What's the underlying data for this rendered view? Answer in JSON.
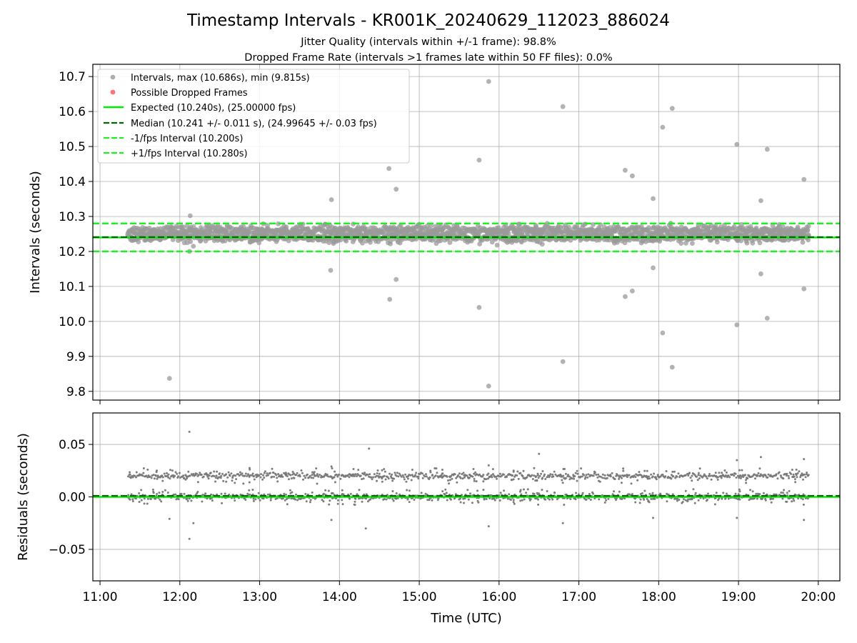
{
  "chart_data": [
    {
      "type": "scatter",
      "title": "Timestamp Intervals - KR001K_20240629_112023_886024",
      "subtitle_1": "Jitter Quality (intervals within +/-1 frame): 98.8%",
      "subtitle_2": "Dropped Frame Rate (intervals >1 frames late within 50 FF files): 0.0%",
      "xlabel": "",
      "ylabel": "Intervals (seconds)",
      "x_range_hours": [
        10.91,
        20.27
      ],
      "ylim": [
        9.775,
        10.735
      ],
      "yticks": [
        9.8,
        9.9,
        10.0,
        10.1,
        10.2,
        10.3,
        10.4,
        10.5,
        10.6,
        10.7
      ],
      "ytick_labels": [
        "9.8",
        "9.9",
        "10.0",
        "10.1",
        "10.2",
        "10.3",
        "10.4",
        "10.5",
        "10.6",
        "10.7"
      ],
      "grid": true,
      "legend_position": "top-left",
      "legend": [
        "Intervals, max (10.686s), min (9.815s)",
        "Possible Dropped Frames",
        "Expected (10.240s), (25.00000 fps)",
        "Median (10.241 +/- 0.011 s), (24.99645 +/- 0.03 fps)",
        "-1/fps Interval (10.200s)",
        "+1/fps Interval (10.280s)"
      ],
      "colors": {
        "points": "#999999",
        "dropped": "#ff6666",
        "expected": "#00ee00",
        "median": "#006400",
        "bounds": "#22ee22"
      },
      "reference_lines": {
        "expected": 10.24,
        "median": 10.241,
        "minus_one_fps": 10.2,
        "plus_one_fps": 10.28
      },
      "bands": [
        {
          "center": 10.26,
          "spread": 0.012
        },
        {
          "center": 10.24,
          "spread": 0.012
        }
      ],
      "data_x_range_hours": [
        11.35,
        19.88
      ],
      "outliers": [
        [
          11.87,
          9.837
        ],
        [
          12.13,
          10.302
        ],
        [
          12.12,
          10.2
        ],
        [
          12.17,
          10.215
        ],
        [
          13.9,
          10.348
        ],
        [
          13.89,
          10.146
        ],
        [
          14.62,
          10.437
        ],
        [
          14.71,
          10.378
        ],
        [
          14.71,
          10.12
        ],
        [
          14.63,
          10.063
        ],
        [
          15.75,
          10.461
        ],
        [
          15.75,
          10.04
        ],
        [
          15.87,
          10.686
        ],
        [
          15.87,
          9.815
        ],
        [
          16.8,
          10.614
        ],
        [
          16.8,
          9.885
        ],
        [
          17.58,
          10.432
        ],
        [
          17.67,
          10.416
        ],
        [
          17.58,
          10.071
        ],
        [
          17.67,
          10.087
        ],
        [
          17.93,
          10.351
        ],
        [
          17.93,
          10.153
        ],
        [
          18.05,
          10.555
        ],
        [
          18.05,
          9.967
        ],
        [
          18.17,
          10.609
        ],
        [
          18.17,
          9.869
        ],
        [
          18.98,
          10.506
        ],
        [
          18.98,
          9.99
        ],
        [
          19.28,
          10.345
        ],
        [
          19.28,
          10.136
        ],
        [
          19.36,
          10.492
        ],
        [
          19.36,
          10.009
        ],
        [
          19.82,
          10.406
        ],
        [
          19.82,
          10.093
        ]
      ]
    },
    {
      "type": "scatter",
      "xlabel": "Time (UTC)",
      "ylabel": "Residuals (seconds)",
      "x_range_hours": [
        10.91,
        20.27
      ],
      "ylim": [
        -0.08,
        0.08
      ],
      "yticks": [
        -0.05,
        0.0,
        0.05
      ],
      "ytick_labels": [
        "−0.05",
        "0.00",
        "0.05"
      ],
      "xticks_hours": [
        11,
        12,
        13,
        14,
        15,
        16,
        17,
        18,
        19,
        20
      ],
      "xtick_labels": [
        "11:00",
        "12:00",
        "13:00",
        "14:00",
        "15:00",
        "16:00",
        "17:00",
        "18:00",
        "19:00",
        "20:00"
      ],
      "grid": true,
      "colors": {
        "points": "#777777",
        "expected": "#00ee00",
        "median": "#006400"
      },
      "reference_lines": {
        "expected": 0.0,
        "median": 0.001
      },
      "bands": [
        {
          "center": 0.02,
          "spread": 0.003
        },
        {
          "center": 0.0,
          "spread": 0.003
        }
      ],
      "data_x_range_hours": [
        11.35,
        19.88
      ],
      "outliers": [
        [
          12.12,
          0.062
        ],
        [
          12.12,
          -0.04
        ],
        [
          12.17,
          -0.025
        ],
        [
          11.87,
          -0.021
        ],
        [
          14.37,
          0.046
        ],
        [
          14.33,
          -0.03
        ],
        [
          16.5,
          0.041
        ],
        [
          15.87,
          0.03
        ],
        [
          15.87,
          -0.028
        ],
        [
          16.8,
          -0.025
        ],
        [
          18.98,
          0.035
        ],
        [
          18.98,
          -0.02
        ],
        [
          19.28,
          0.038
        ],
        [
          19.82,
          0.036
        ],
        [
          19.82,
          -0.022
        ],
        [
          17.93,
          -0.02
        ],
        [
          13.9,
          0.029
        ],
        [
          13.9,
          -0.022
        ]
      ]
    }
  ]
}
